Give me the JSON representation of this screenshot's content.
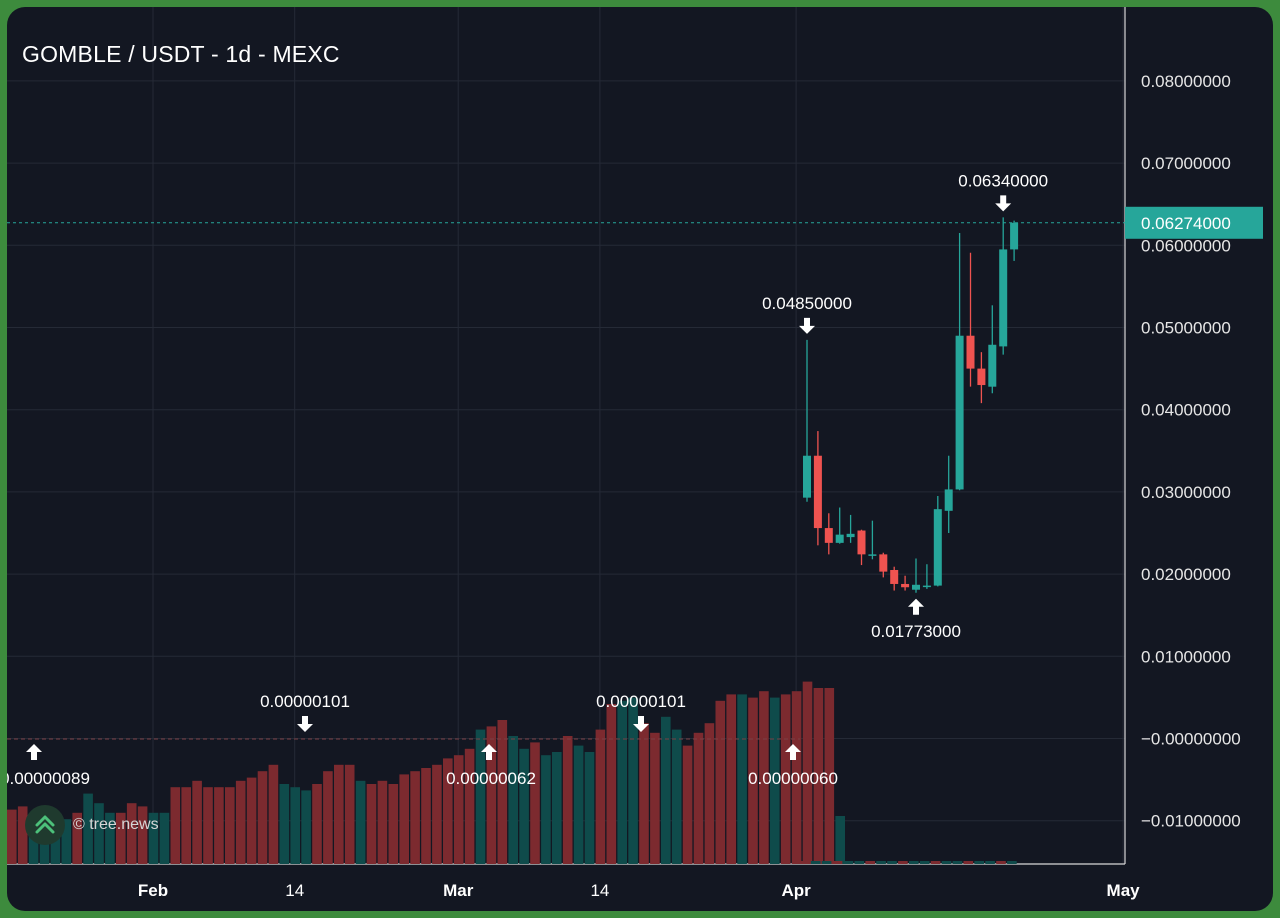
{
  "chart_data": {
    "type": "candlestick",
    "title": "GOMBLE / USDT - 1d - MEXC",
    "y_axis": {
      "ticks": [
        {
          "value": 0.08,
          "label": "0.08000000"
        },
        {
          "value": 0.07,
          "label": "0.07000000"
        },
        {
          "value": 0.06,
          "label": "0.06000000"
        },
        {
          "value": 0.05,
          "label": "0.05000000"
        },
        {
          "value": 0.04,
          "label": "0.04000000"
        },
        {
          "value": 0.03,
          "label": "0.03000000"
        },
        {
          "value": 0.02,
          "label": "0.02000000"
        },
        {
          "value": 0.01,
          "label": "0.01000000"
        },
        {
          "value": 0.0,
          "label": "−0.00000000"
        },
        {
          "value": -0.01,
          "label": "−0.01000000"
        }
      ],
      "range": [
        -0.0152,
        0.0892
      ]
    },
    "x_axis": {
      "ticks": [
        {
          "date": "2025-02-01",
          "label": "Feb",
          "bold": true
        },
        {
          "date": "2025-02-14",
          "label": "14",
          "bold": false
        },
        {
          "date": "2025-03-01",
          "label": "Mar",
          "bold": true
        },
        {
          "date": "2025-03-14",
          "label": "14",
          "bold": false
        },
        {
          "date": "2025-04-01",
          "label": "Apr",
          "bold": true
        },
        {
          "date": "2025-05-01",
          "label": "May",
          "bold": true
        }
      ]
    },
    "grid": true,
    "last_price": {
      "value": 0.06274,
      "label": "0.06274000",
      "color": "#26a69a"
    },
    "colors": {
      "up": "#26a69a",
      "down": "#ef5350",
      "up_volume": "#0f4b4b",
      "down_volume": "#7c2a2f",
      "grid": "#252a36",
      "background": "#131722"
    },
    "candles": [
      {
        "date": "2025-04-02",
        "open": 0.0293,
        "high": 0.0485,
        "low": 0.0288,
        "close": 0.0344
      },
      {
        "date": "2025-04-03",
        "open": 0.0344,
        "high": 0.0374,
        "low": 0.0235,
        "close": 0.0256
      },
      {
        "date": "2025-04-04",
        "open": 0.0256,
        "high": 0.0274,
        "low": 0.0224,
        "close": 0.0238
      },
      {
        "date": "2025-04-05",
        "open": 0.0238,
        "high": 0.0281,
        "low": 0.0237,
        "close": 0.0248
      },
      {
        "date": "2025-04-06",
        "open": 0.0245,
        "high": 0.0272,
        "low": 0.0238,
        "close": 0.0249
      },
      {
        "date": "2025-04-07",
        "open": 0.0253,
        "high": 0.0254,
        "low": 0.0211,
        "close": 0.0224
      },
      {
        "date": "2025-04-08",
        "open": 0.0223,
        "high": 0.0265,
        "low": 0.0218,
        "close": 0.0224
      },
      {
        "date": "2025-04-09",
        "open": 0.0224,
        "high": 0.0226,
        "low": 0.0196,
        "close": 0.0203
      },
      {
        "date": "2025-04-10",
        "open": 0.0205,
        "high": 0.0209,
        "low": 0.018,
        "close": 0.0188
      },
      {
        "date": "2025-04-11",
        "open": 0.0188,
        "high": 0.0198,
        "low": 0.018,
        "close": 0.0184
      },
      {
        "date": "2025-04-12",
        "open": 0.0181,
        "high": 0.0219,
        "low": 0.01773,
        "close": 0.0187
      },
      {
        "date": "2025-04-13",
        "open": 0.0186,
        "high": 0.0212,
        "low": 0.0182,
        "close": 0.0186
      },
      {
        "date": "2025-04-14",
        "open": 0.0186,
        "high": 0.0295,
        "low": 0.0185,
        "close": 0.0279
      },
      {
        "date": "2025-04-15",
        "open": 0.0277,
        "high": 0.0344,
        "low": 0.025,
        "close": 0.0303
      },
      {
        "date": "2025-04-16",
        "open": 0.0303,
        "high": 0.0615,
        "low": 0.0302,
        "close": 0.049
      },
      {
        "date": "2025-04-17",
        "open": 0.049,
        "high": 0.0591,
        "low": 0.0428,
        "close": 0.045
      },
      {
        "date": "2025-04-18",
        "open": 0.045,
        "high": 0.047,
        "low": 0.0408,
        "close": 0.043
      },
      {
        "date": "2025-04-19",
        "open": 0.0428,
        "high": 0.0527,
        "low": 0.042,
        "close": 0.0479
      },
      {
        "date": "2025-04-20",
        "open": 0.0477,
        "high": 0.0634,
        "low": 0.0467,
        "close": 0.0595
      },
      {
        "date": "2025-04-21",
        "open": 0.0595,
        "high": 0.063,
        "low": 0.0581,
        "close": 0.06274
      }
    ],
    "volume_overlay": {
      "note": "relative bar heights 0-1 of the overlay band",
      "bars": [
        {
          "dir": "down",
          "rel": 0.085
        },
        {
          "dir": "down",
          "rel": 0.09
        },
        {
          "dir": "up",
          "rel": 0.07
        },
        {
          "dir": "up",
          "rel": 0.05
        },
        {
          "dir": "up",
          "rel": 0.06
        },
        {
          "dir": "up",
          "rel": 0.07
        },
        {
          "dir": "down",
          "rel": 0.08
        },
        {
          "dir": "up",
          "rel": 0.11
        },
        {
          "dir": "up",
          "rel": 0.095
        },
        {
          "dir": "up",
          "rel": 0.08
        },
        {
          "dir": "down",
          "rel": 0.08
        },
        {
          "dir": "down",
          "rel": 0.095
        },
        {
          "dir": "down",
          "rel": 0.09
        },
        {
          "dir": "up",
          "rel": 0.08
        },
        {
          "dir": "up",
          "rel": 0.08
        },
        {
          "dir": "down",
          "rel": 0.12
        },
        {
          "dir": "down",
          "rel": 0.12
        },
        {
          "dir": "down",
          "rel": 0.13
        },
        {
          "dir": "down",
          "rel": 0.12
        },
        {
          "dir": "down",
          "rel": 0.12
        },
        {
          "dir": "down",
          "rel": 0.12
        },
        {
          "dir": "down",
          "rel": 0.13
        },
        {
          "dir": "down",
          "rel": 0.135
        },
        {
          "dir": "down",
          "rel": 0.145
        },
        {
          "dir": "down",
          "rel": 0.155
        },
        {
          "dir": "up",
          "rel": 0.125
        },
        {
          "dir": "up",
          "rel": 0.12
        },
        {
          "dir": "up",
          "rel": 0.115
        },
        {
          "dir": "down",
          "rel": 0.125
        },
        {
          "dir": "down",
          "rel": 0.145
        },
        {
          "dir": "down",
          "rel": 0.155
        },
        {
          "dir": "down",
          "rel": 0.155
        },
        {
          "dir": "up",
          "rel": 0.13
        },
        {
          "dir": "down",
          "rel": 0.125
        },
        {
          "dir": "down",
          "rel": 0.13
        },
        {
          "dir": "down",
          "rel": 0.125
        },
        {
          "dir": "down",
          "rel": 0.14
        },
        {
          "dir": "down",
          "rel": 0.145
        },
        {
          "dir": "down",
          "rel": 0.15
        },
        {
          "dir": "down",
          "rel": 0.155
        },
        {
          "dir": "down",
          "rel": 0.165
        },
        {
          "dir": "down",
          "rel": 0.17
        },
        {
          "dir": "down",
          "rel": 0.18
        },
        {
          "dir": "up",
          "rel": 0.21
        },
        {
          "dir": "down",
          "rel": 0.215
        },
        {
          "dir": "down",
          "rel": 0.225
        },
        {
          "dir": "up",
          "rel": 0.2
        },
        {
          "dir": "up",
          "rel": 0.18
        },
        {
          "dir": "down",
          "rel": 0.19
        },
        {
          "dir": "up",
          "rel": 0.17
        },
        {
          "dir": "up",
          "rel": 0.175
        },
        {
          "dir": "down",
          "rel": 0.2
        },
        {
          "dir": "up",
          "rel": 0.185
        },
        {
          "dir": "up",
          "rel": 0.175
        },
        {
          "dir": "down",
          "rel": 0.21
        },
        {
          "dir": "down",
          "rel": 0.25
        },
        {
          "dir": "up",
          "rel": 0.255
        },
        {
          "dir": "up",
          "rel": 0.26
        },
        {
          "dir": "down",
          "rel": 0.22
        },
        {
          "dir": "down",
          "rel": 0.205
        },
        {
          "dir": "up",
          "rel": 0.23
        },
        {
          "dir": "up",
          "rel": 0.21
        },
        {
          "dir": "down",
          "rel": 0.185
        },
        {
          "dir": "down",
          "rel": 0.205
        },
        {
          "dir": "down",
          "rel": 0.22
        },
        {
          "dir": "down",
          "rel": 0.255
        },
        {
          "dir": "down",
          "rel": 0.265
        },
        {
          "dir": "up",
          "rel": 0.265
        },
        {
          "dir": "down",
          "rel": 0.26
        },
        {
          "dir": "down",
          "rel": 0.27
        },
        {
          "dir": "up",
          "rel": 0.26
        },
        {
          "dir": "down",
          "rel": 0.265
        },
        {
          "dir": "down",
          "rel": 0.27
        },
        {
          "dir": "down",
          "rel": 0.285
        },
        {
          "dir": "down",
          "rel": 0.275
        },
        {
          "dir": "down",
          "rel": 0.275
        },
        {
          "dir": "up",
          "rel": 0.075
        }
      ]
    },
    "annotations": [
      {
        "label": "0.06340000",
        "value": 0.0634,
        "candle_date": "2025-04-20",
        "kind": "high"
      },
      {
        "label": "0.04850000",
        "value": 0.0485,
        "candle_date": "2025-04-02",
        "kind": "high"
      },
      {
        "label": "0.01773000",
        "value": 0.01773,
        "candle_date": "2025-04-12",
        "kind": "low"
      }
    ],
    "pre_listing_annotations": [
      {
        "label": "0.00000089",
        "kind": "low"
      },
      {
        "label": "0.00000101",
        "kind": "high"
      },
      {
        "label": "0.00000062",
        "kind": "low"
      },
      {
        "label": "0.00000101",
        "kind": "high"
      },
      {
        "label": "0.00000060",
        "kind": "low"
      }
    ]
  },
  "watermark": {
    "text": "© tree.news",
    "icon": "tree-news-logo-icon"
  }
}
